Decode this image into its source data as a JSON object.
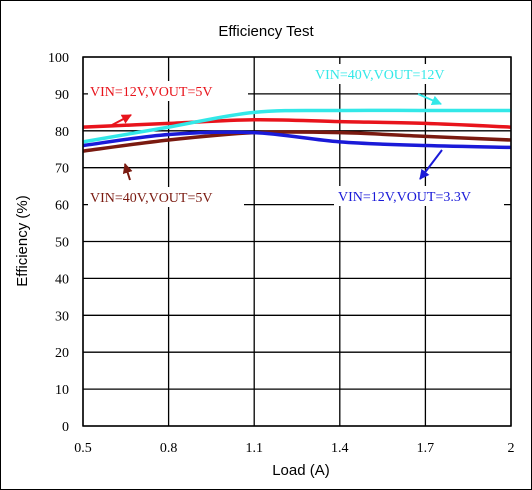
{
  "chart_data": {
    "type": "line",
    "title": "Efficiency Test",
    "xlabel": "Load (A)",
    "ylabel": "Efficiency (%)",
    "xlim": [
      0.5,
      2.0
    ],
    "ylim": [
      0,
      100
    ],
    "xticks": [
      0.5,
      0.8,
      1.1,
      1.4,
      1.7,
      2.0
    ],
    "xtick_labels": [
      "0.5",
      "0.8",
      "1.1",
      "1.4",
      "1.7",
      "2"
    ],
    "yticks": [
      0,
      10,
      20,
      30,
      40,
      50,
      60,
      70,
      80,
      90,
      100
    ],
    "ytick_labels": [
      "0",
      "10",
      "20",
      "30",
      "40",
      "50",
      "60",
      "70",
      "80",
      "90",
      "100"
    ],
    "grid": true,
    "series": [
      {
        "name": "VIN=12V,VOUT=5V",
        "color": "#e8141c",
        "x": [
          0.5,
          0.8,
          1.1,
          1.4,
          1.7,
          2.0
        ],
        "values": [
          81,
          82,
          83,
          82.5,
          82,
          81
        ]
      },
      {
        "name": "VIN=40V,VOUT=12V",
        "color": "#33e8e8",
        "x": [
          0.5,
          0.8,
          1.1,
          1.4,
          1.7,
          2.0
        ],
        "values": [
          77,
          81,
          85,
          85.5,
          85.5,
          85.5
        ]
      },
      {
        "name": "VIN=40V,VOUT=5V",
        "color": "#7a1a10",
        "x": [
          0.5,
          0.8,
          1.1,
          1.4,
          1.7,
          2.0
        ],
        "values": [
          74.5,
          77.5,
          79.5,
          79.5,
          78.5,
          77.5
        ]
      },
      {
        "name": "VIN=12V,VOUT=3.3V",
        "color": "#1a1ad8",
        "x": [
          0.5,
          0.8,
          1.1,
          1.4,
          1.7,
          2.0
        ],
        "values": [
          76,
          79,
          79.5,
          77,
          76,
          75.5
        ]
      }
    ]
  }
}
